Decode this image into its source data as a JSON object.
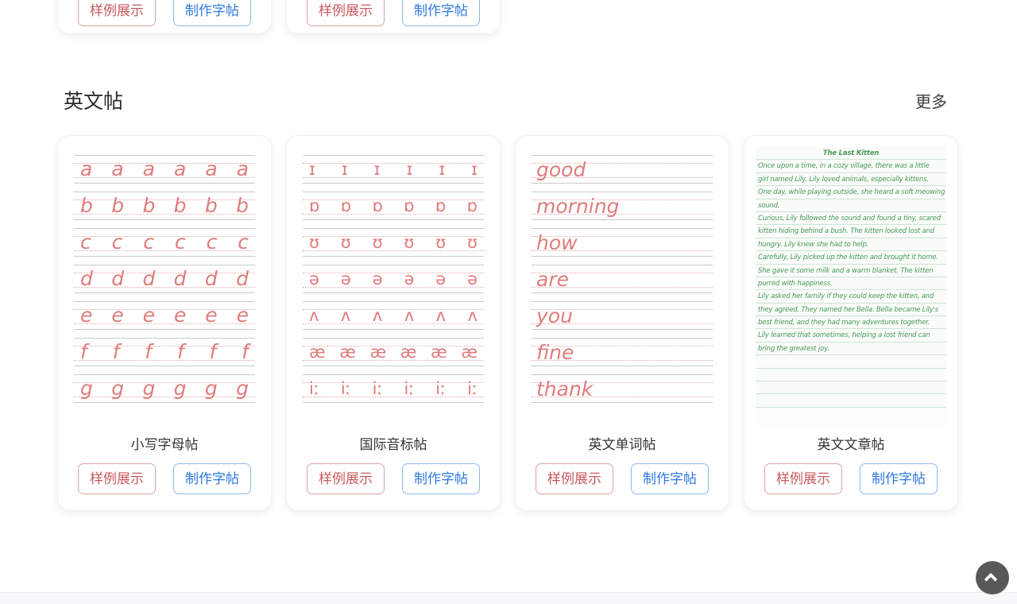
{
  "section": {
    "title": "英文帖",
    "more_label": "更多"
  },
  "buttons": {
    "sample_label": "样例展示",
    "make_label": "制作字帖"
  },
  "cards": [
    {
      "title": "小写字母帖",
      "type": "letter-grid",
      "glyph_style": "it",
      "rows": [
        "a",
        "b",
        "c",
        "d",
        "e",
        "f",
        "g"
      ],
      "repeat": 6
    },
    {
      "title": "国际音标帖",
      "type": "letter-grid",
      "glyph_style": "ipa",
      "rows": [
        "ɪ",
        "ɒ",
        "ʊ",
        "ə",
        "ʌ",
        "æ",
        "iː"
      ],
      "repeat": 6
    },
    {
      "title": "英文单词帖",
      "type": "word-lines",
      "words": [
        "good",
        "morning",
        "how",
        "are",
        "you",
        "fine",
        "thank"
      ]
    },
    {
      "title": "英文文章帖",
      "type": "article",
      "article_title": "The Last Kitten",
      "lines": [
        "Once upon a time, in a cozy village, there was a little",
        "girl named Lily. Lily loved animals, especially kittens.",
        "One day, while playing outside, she heard a soft meowing",
        "sound.",
        "Curious, Lily followed the sound and found a tiny, scared",
        "kitten hiding behind a bush. The kitten looked lost and",
        "hungry. Lily knew she had to help.",
        "Carefully, Lily picked up the kitten and brought it home.",
        "She gave it some milk and a warm blanket. The kitten",
        "purred with happiness.",
        "Lily asked her family if they could keep the kitten, and",
        "they agreed. They named her Bella. Bella became Lily's",
        "best friend, and they had many adventures together.",
        "Lily learned that sometimes, helping a lost friend can",
        "bring the greatest joy."
      ],
      "empty_lines": 4
    }
  ],
  "colors": {
    "practice_pink": "#e07c7c",
    "article_green": "#49985a",
    "accent_red": "#c9595c",
    "accent_blue": "#2e79e3"
  }
}
